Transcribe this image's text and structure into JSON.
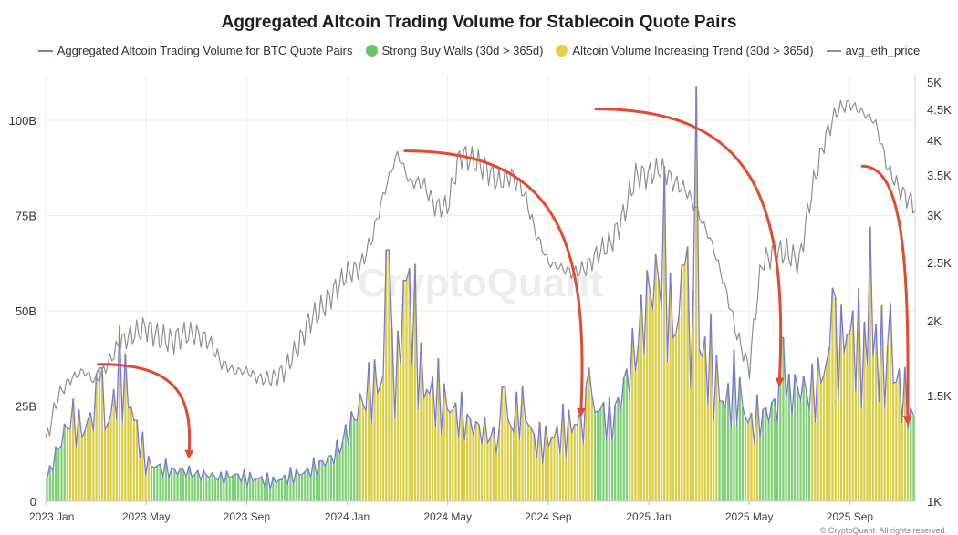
{
  "chart_data": {
    "type": "bar",
    "title": "Aggregated Altcoin Trading Volume for Stablecoin Quote Pairs",
    "watermark": "CryptoQuant",
    "legend": [
      {
        "name": "Aggregated Altcoin Trading Volume for BTC Quote Pairs",
        "kind": "line",
        "color": "#7b78d6"
      },
      {
        "name": "Strong Buy Walls (30d > 365d)",
        "kind": "dot",
        "color": "#6cc36c"
      },
      {
        "name": "Altcoin Volume Increasing Trend (30d > 365d)",
        "kind": "dot",
        "color": "#e3cf4a"
      },
      {
        "name": "avg_eth_price",
        "kind": "line",
        "color": "#8f8f8f"
      }
    ],
    "x_ticks": [
      "2023 Jan",
      "2023 May",
      "2023 Sep",
      "2024 Jan",
      "2024 May",
      "2024 Sep",
      "2025 Jan",
      "2025 May",
      "2025 Sep"
    ],
    "x_tick_months": [
      0,
      4,
      8,
      12,
      16,
      20,
      24,
      28,
      32
    ],
    "x_range_months": [
      0,
      34.6
    ],
    "y_left": {
      "ticks": [
        "0",
        "25B",
        "50B",
        "75B",
        "100B"
      ],
      "tick_values": [
        0,
        25,
        50,
        75,
        100
      ],
      "range": [
        0,
        112
      ],
      "unit": "B"
    },
    "y_right": {
      "ticks": [
        "1K",
        "1.5K",
        "2K",
        "2.5K",
        "3K",
        "3.5K",
        "4K",
        "4.5K",
        "5K"
      ],
      "tick_values": [
        1000,
        1500,
        2000,
        2500,
        3000,
        3500,
        4000,
        4500,
        5000
      ],
      "range": [
        1000,
        5000
      ],
      "scale": "log"
    },
    "volume_series": {
      "name": "Aggregated Altcoin Trading Volume (B)",
      "months": [
        0,
        0.5,
        1,
        1.5,
        2,
        2.5,
        3,
        3.5,
        4,
        4.5,
        5,
        5.5,
        6,
        6.5,
        7,
        7.5,
        8,
        8.5,
        9,
        9.5,
        10,
        10.5,
        11,
        11.5,
        12,
        12.5,
        13,
        13.5,
        14,
        14.5,
        15,
        15.5,
        16,
        16.5,
        17,
        17.5,
        18,
        18.5,
        19,
        19.5,
        20,
        20.5,
        21,
        21.5,
        22,
        22.5,
        23,
        23.5,
        24,
        24.5,
        25,
        25.5,
        26,
        26.5,
        27,
        27.5,
        28,
        28.5,
        29,
        29.5,
        30,
        30.5,
        31,
        31.5,
        32,
        32.5,
        33,
        33.5,
        34,
        34.6
      ],
      "values": [
        5,
        14,
        22,
        18,
        25,
        20,
        35,
        22,
        10,
        9,
        8,
        8,
        7,
        7,
        6,
        7,
        6,
        6,
        5,
        6,
        7,
        8,
        10,
        12,
        18,
        25,
        30,
        32,
        35,
        55,
        30,
        28,
        25,
        22,
        20,
        18,
        16,
        20,
        25,
        15,
        16,
        18,
        20,
        22,
        25,
        20,
        30,
        40,
        55,
        60,
        45,
        50,
        40,
        35,
        25,
        30,
        20,
        22,
        25,
        28,
        30,
        28,
        35,
        40,
        45,
        38,
        40,
        35,
        30,
        20
      ],
      "peaks": [
        {
          "month": 2.2,
          "value": 35
        },
        {
          "month": 13.6,
          "value": 66
        },
        {
          "month": 14.3,
          "value": 58
        },
        {
          "month": 18.2,
          "value": 30
        },
        {
          "month": 21.6,
          "value": 35
        },
        {
          "month": 24.6,
          "value": 88
        },
        {
          "month": 25.4,
          "value": 62
        },
        {
          "month": 25.9,
          "value": 109
        },
        {
          "month": 29.3,
          "value": 43
        },
        {
          "month": 31.3,
          "value": 56
        },
        {
          "month": 32.8,
          "value": 72
        },
        {
          "month": 33.6,
          "value": 52
        }
      ],
      "signal_green": "Strong Buy Walls (30d > 365d)",
      "signal_yellow_ranges": [
        [
          0.8,
          4.2
        ],
        [
          12.4,
          21.8
        ],
        [
          23.2,
          26.8
        ],
        [
          27.8,
          28.4
        ],
        [
          30.4,
          34.4
        ]
      ]
    },
    "eth_price_series": {
      "name": "avg_eth_price",
      "months": [
        0,
        0.5,
        1,
        1.5,
        2,
        2.5,
        3,
        3.5,
        4,
        4.5,
        5,
        5.5,
        6,
        6.5,
        7,
        7.5,
        8,
        8.5,
        9,
        9.5,
        10,
        10.5,
        11,
        11.5,
        12,
        12.5,
        13,
        13.5,
        14,
        14.5,
        15,
        15.5,
        16,
        16.5,
        17,
        17.5,
        18,
        18.5,
        19,
        19.5,
        20,
        20.5,
        21,
        21.5,
        22,
        22.5,
        23,
        23.5,
        24,
        24.5,
        25,
        25.5,
        26,
        26.5,
        27,
        27.5,
        28,
        28.5,
        29,
        29.5,
        30,
        30.5,
        31,
        31.5,
        32,
        32.5,
        33,
        33.5,
        34,
        34.6
      ],
      "values": [
        1250,
        1500,
        1600,
        1650,
        1580,
        1700,
        1850,
        1900,
        1950,
        1880,
        1850,
        1900,
        1900,
        1850,
        1700,
        1650,
        1650,
        1600,
        1600,
        1650,
        1800,
        2000,
        2100,
        2250,
        2400,
        2450,
        2750,
        3300,
        3800,
        3400,
        3400,
        3100,
        3100,
        3800,
        3700,
        3600,
        3400,
        3500,
        3300,
        2800,
        2500,
        2450,
        2400,
        2450,
        2600,
        2700,
        3000,
        3500,
        3500,
        3600,
        3400,
        3300,
        3000,
        2700,
        2300,
        1900,
        1650,
        2500,
        2600,
        2600,
        2500,
        3300,
        4000,
        4500,
        4600,
        4450,
        4300,
        3600,
        3300,
        3100
      ]
    },
    "arrows": [
      {
        "from_month": 2.1,
        "from_value": 36,
        "to_month": 5.7,
        "to_value": 12
      },
      {
        "from_month": 14.3,
        "from_value": 92,
        "to_month": 21.3,
        "to_value": 23
      },
      {
        "from_month": 21.9,
        "from_value": 103,
        "to_month": 29.2,
        "to_value": 31
      },
      {
        "from_month": 32.5,
        "from_value": 88,
        "to_month": 34.3,
        "to_value": 21
      }
    ],
    "footer": "© CryptoQuant. All rights reserved."
  }
}
